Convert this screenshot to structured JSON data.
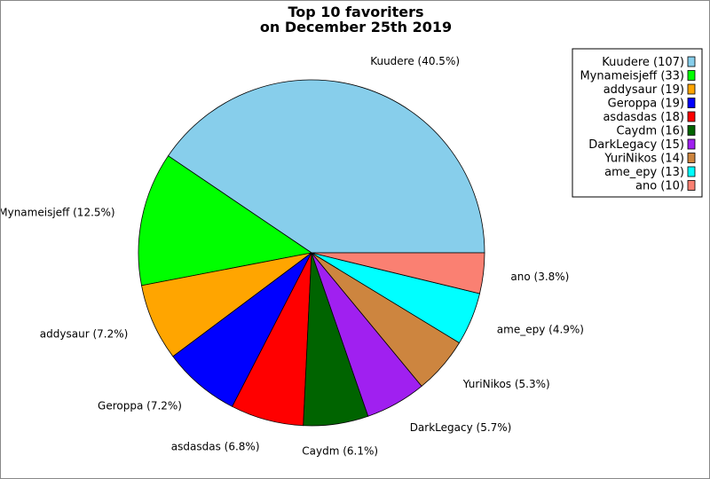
{
  "chart_data": {
    "type": "pie",
    "title": "Top 10 favoriters",
    "subtitle": "on December 25th 2019",
    "start_angle_deg": 0,
    "direction": "counterclockwise",
    "legend_placement": "top-right",
    "slices": [
      {
        "name": "Kuudere",
        "value": 107,
        "percent_label": "Kuudere (40.5%)",
        "legend_label": "Kuudere (107)",
        "color": "#87CEEB"
      },
      {
        "name": "Mynameisjeff",
        "value": 33,
        "percent_label": "Mynameisjeff (12.5%)",
        "legend_label": "Mynameisjeff (33)",
        "color": "#00FF00"
      },
      {
        "name": "addysaur",
        "value": 19,
        "percent_label": "addysaur (7.2%)",
        "legend_label": "addysaur (19)",
        "color": "#FFA500"
      },
      {
        "name": "Geroppa",
        "value": 19,
        "percent_label": "Geroppa (7.2%)",
        "legend_label": "Geroppa (19)",
        "color": "#0000FF"
      },
      {
        "name": "asdasdas",
        "value": 18,
        "percent_label": "asdasdas (6.8%)",
        "legend_label": "asdasdas (18)",
        "color": "#FF0000"
      },
      {
        "name": "Caydm",
        "value": 16,
        "percent_label": "Caydm (6.1%)",
        "legend_label": "Caydm (16)",
        "color": "#006400"
      },
      {
        "name": "DarkLegacy",
        "value": 15,
        "percent_label": "DarkLegacy (5.7%)",
        "legend_label": "DarkLegacy (15)",
        "color": "#A020F0"
      },
      {
        "name": "YuriNikos",
        "value": 14,
        "percent_label": "YuriNikos (5.3%)",
        "legend_label": "YuriNikos (14)",
        "color": "#CD853F"
      },
      {
        "name": "ame_epy",
        "value": 13,
        "percent_label": "ame_epy (4.9%)",
        "legend_label": "ame_epy (13)",
        "color": "#00FFFF"
      },
      {
        "name": "ano",
        "value": 10,
        "percent_label": "ano (3.8%)",
        "legend_label": "ano (10)",
        "color": "#FA8072"
      }
    ]
  }
}
